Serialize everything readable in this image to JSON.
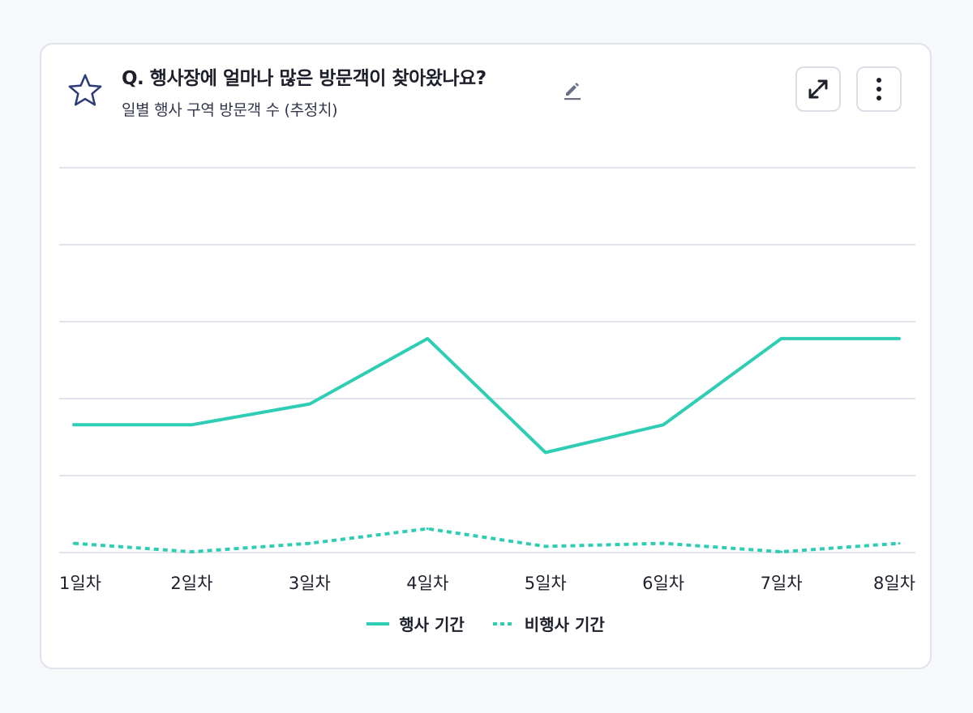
{
  "card": {
    "title": "Q. 행사장에 얼마나 많은 방문객이 찾아왔나요?",
    "subtitle": "일별 행사 구역 방문객 수 (추정치)"
  },
  "icons": {
    "favorite": "star-icon",
    "edit": "pencil-icon",
    "expand": "expand-icon",
    "more": "more-vertical-icon"
  },
  "colors": {
    "series": "#2ecdb4",
    "grid": "#e2e4ec",
    "star": "#2b3a78"
  },
  "chart_data": {
    "type": "line",
    "title": "",
    "xlabel": "",
    "ylabel": "",
    "categories": [
      "1일차",
      "2일차",
      "3일차",
      "4일차",
      "5일차",
      "6일차",
      "7일차",
      "8일차"
    ],
    "ylim": [
      0,
      5
    ],
    "grid": true,
    "legend_position": "bottom",
    "series": [
      {
        "name": "행사 기간",
        "style": "solid",
        "values": [
          1.66,
          1.66,
          1.93,
          2.78,
          1.3,
          1.66,
          2.78,
          2.78
        ]
      },
      {
        "name": "비행사 기간",
        "style": "dotted",
        "values": [
          0.12,
          0.01,
          0.12,
          0.31,
          0.08,
          0.12,
          0.01,
          0.12
        ]
      }
    ]
  }
}
